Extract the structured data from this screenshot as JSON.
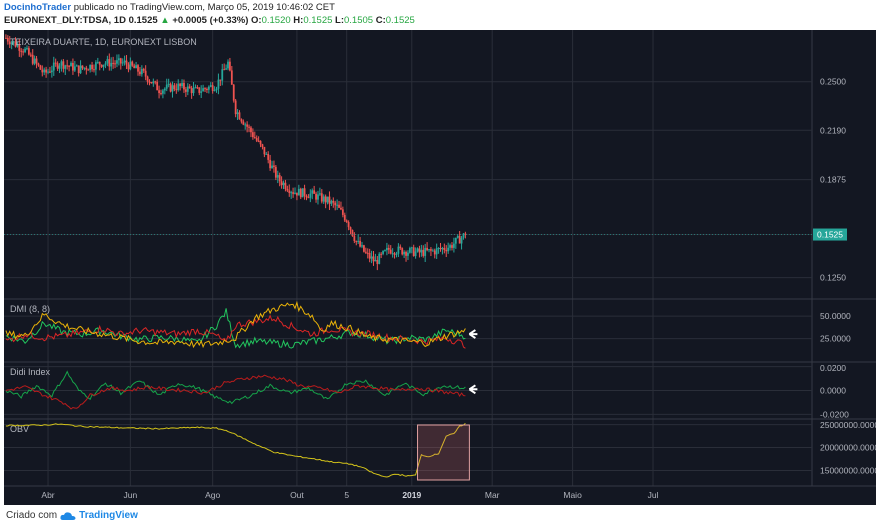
{
  "header": {
    "author": "DocinhoTrader",
    "published_text": "publicado no TradingView.com, Março 05, 2019 10:46:02 CET",
    "symbol": "EURONEXT_DLY:TDSA, 1D",
    "last": "0.1525",
    "change_arrow": "▲",
    "change": "+0.0005 (+0.33%)",
    "o_label": "O:",
    "o_val": "0.1520",
    "h_label": "H:",
    "h_val": "0.1525",
    "l_label": "L:",
    "l_val": "0.1505",
    "c_label": "C:",
    "c_val": "0.1525"
  },
  "footer": {
    "created_with": "Criado com",
    "brand": "TradingView"
  },
  "colors": {
    "background": "#131722",
    "grid": "#2a2e39",
    "up": "#26a69a",
    "down": "#ef5350",
    "dmi_plus": "#22c55e",
    "dmi_minus": "#dc2626",
    "adx": "#eab308",
    "didi_green": "#16a34a",
    "didi_red": "#b91c1c",
    "obv": "#d4c41a",
    "last_price_label": "#26a69a",
    "highlight": "#e57373"
  },
  "chart_data": [
    {
      "type": "candlestick",
      "title": "TEIXEIRA DUARTE, 1D, EURONEXT LISBON",
      "last_price_label": "0.1525",
      "y_ticks": [
        "0.2500",
        "0.2190",
        "0.1875",
        "0.1525",
        "0.1250"
      ],
      "y_tick_values": [
        0.25,
        0.219,
        0.1875,
        0.1525,
        0.125
      ],
      "ylim": [
        0.112,
        0.283
      ],
      "x_ticks": [
        "Abr",
        "Jun",
        "Ago",
        "Out",
        "5",
        "2019",
        "Mar",
        "Maio",
        "Jul"
      ],
      "price_path_anchors": [
        {
          "t": 0,
          "v": 0.278
        },
        {
          "t": 10,
          "v": 0.27
        },
        {
          "t": 20,
          "v": 0.255
        },
        {
          "t": 28,
          "v": 0.262
        },
        {
          "t": 38,
          "v": 0.258
        },
        {
          "t": 50,
          "v": 0.262
        },
        {
          "t": 62,
          "v": 0.262
        },
        {
          "t": 72,
          "v": 0.255
        },
        {
          "t": 80,
          "v": 0.245
        },
        {
          "t": 90,
          "v": 0.247
        },
        {
          "t": 100,
          "v": 0.244
        },
        {
          "t": 110,
          "v": 0.248
        },
        {
          "t": 116,
          "v": 0.262
        },
        {
          "t": 120,
          "v": 0.232
        },
        {
          "t": 128,
          "v": 0.218
        },
        {
          "t": 135,
          "v": 0.205
        },
        {
          "t": 142,
          "v": 0.188
        },
        {
          "t": 150,
          "v": 0.18
        },
        {
          "t": 160,
          "v": 0.178
        },
        {
          "t": 168,
          "v": 0.174
        },
        {
          "t": 173,
          "v": 0.17
        },
        {
          "t": 178,
          "v": 0.162
        },
        {
          "t": 183,
          "v": 0.148
        },
        {
          "t": 188,
          "v": 0.14
        },
        {
          "t": 193,
          "v": 0.135
        },
        {
          "t": 200,
          "v": 0.143
        },
        {
          "t": 208,
          "v": 0.142
        },
        {
          "t": 216,
          "v": 0.141
        },
        {
          "t": 224,
          "v": 0.142
        },
        {
          "t": 232,
          "v": 0.145
        },
        {
          "t": 240,
          "v": 0.1525
        }
      ]
    },
    {
      "type": "line",
      "title": "DMI (8, 8)",
      "y_ticks": [
        "50.0000",
        "25.0000"
      ],
      "y_tick_values": [
        50,
        25
      ],
      "ylim": [
        0,
        68
      ],
      "series": [
        {
          "key": "plus_di",
          "color": "#22c55e",
          "anchors": [
            [
              0,
              28
            ],
            [
              10,
              22
            ],
            [
              20,
              42
            ],
            [
              30,
              32
            ],
            [
              40,
              30
            ],
            [
              50,
              34
            ],
            [
              60,
              28
            ],
            [
              70,
              24
            ],
            [
              80,
              26
            ],
            [
              90,
              25
            ],
            [
              100,
              20
            ],
            [
              110,
              40
            ],
            [
              115,
              55
            ],
            [
              120,
              18
            ],
            [
              130,
              22
            ],
            [
              140,
              20
            ],
            [
              150,
              18
            ],
            [
              160,
              22
            ],
            [
              170,
              26
            ],
            [
              180,
              32
            ],
            [
              190,
              28
            ],
            [
              200,
              22
            ],
            [
              210,
              26
            ],
            [
              220,
              24
            ],
            [
              230,
              34
            ],
            [
              240,
              28
            ]
          ]
        },
        {
          "key": "minus_di",
          "color": "#dc2626",
          "anchors": [
            [
              0,
              22
            ],
            [
              10,
              30
            ],
            [
              20,
              26
            ],
            [
              30,
              28
            ],
            [
              40,
              32
            ],
            [
              50,
              36
            ],
            [
              60,
              30
            ],
            [
              70,
              34
            ],
            [
              80,
              32
            ],
            [
              90,
              30
            ],
            [
              100,
              34
            ],
            [
              110,
              28
            ],
            [
              115,
              20
            ],
            [
              120,
              40
            ],
            [
              130,
              44
            ],
            [
              140,
              48
            ],
            [
              150,
              38
            ],
            [
              160,
              30
            ],
            [
              170,
              36
            ],
            [
              180,
              32
            ],
            [
              190,
              30
            ],
            [
              200,
              26
            ],
            [
              210,
              24
            ],
            [
              220,
              22
            ],
            [
              230,
              26
            ],
            [
              240,
              18
            ]
          ]
        },
        {
          "key": "adx",
          "color": "#eab308",
          "anchors": [
            [
              0,
              30
            ],
            [
              10,
              28
            ],
            [
              20,
              52
            ],
            [
              30,
              40
            ],
            [
              40,
              34
            ],
            [
              50,
              30
            ],
            [
              60,
              26
            ],
            [
              70,
              22
            ],
            [
              80,
              20
            ],
            [
              90,
              22
            ],
            [
              100,
              18
            ],
            [
              110,
              20
            ],
            [
              120,
              26
            ],
            [
              130,
              48
            ],
            [
              140,
              58
            ],
            [
              150,
              64
            ],
            [
              160,
              50
            ],
            [
              165,
              34
            ],
            [
              170,
              42
            ],
            [
              180,
              36
            ],
            [
              190,
              26
            ],
            [
              200,
              24
            ],
            [
              210,
              22
            ],
            [
              220,
              20
            ],
            [
              230,
              28
            ],
            [
              240,
              34
            ]
          ]
        }
      ]
    },
    {
      "type": "line",
      "title": "Didi Index",
      "y_ticks": [
        "0.0200",
        "0.0000",
        "-0.0200"
      ],
      "y_tick_values": [
        0.02,
        0,
        -0.02
      ],
      "ylim": [
        -0.023,
        0.023
      ],
      "series": [
        {
          "key": "didi_green",
          "color": "#16a34a",
          "anchors": [
            [
              0,
              0.0
            ],
            [
              8,
              -0.005
            ],
            [
              16,
              0.004
            ],
            [
              24,
              -0.004
            ],
            [
              32,
              0.015
            ],
            [
              38,
              0.0
            ],
            [
              44,
              -0.006
            ],
            [
              52,
              0.006
            ],
            [
              60,
              -0.002
            ],
            [
              70,
              0.008
            ],
            [
              80,
              -0.004
            ],
            [
              90,
              0.006
            ],
            [
              100,
              0.002
            ],
            [
              110,
              -0.006
            ],
            [
              118,
              -0.01
            ],
            [
              128,
              -0.004
            ],
            [
              138,
              0.004
            ],
            [
              148,
              -0.002
            ],
            [
              158,
              0.002
            ],
            [
              168,
              -0.008
            ],
            [
              178,
              0.006
            ],
            [
              188,
              0.008
            ],
            [
              198,
              -0.004
            ],
            [
              208,
              0.006
            ],
            [
              218,
              -0.003
            ],
            [
              228,
              0.004
            ],
            [
              240,
              0.002
            ]
          ]
        },
        {
          "key": "didi_red",
          "color": "#b91c1c",
          "anchors": [
            [
              0,
              0.0
            ],
            [
              10,
              0.003
            ],
            [
              20,
              -0.004
            ],
            [
              30,
              -0.01
            ],
            [
              36,
              -0.016
            ],
            [
              44,
              -0.004
            ],
            [
              54,
              0.002
            ],
            [
              64,
              0.0
            ],
            [
              74,
              0.003
            ],
            [
              84,
              0.001
            ],
            [
              94,
              0.0
            ],
            [
              104,
              -0.002
            ],
            [
              114,
              0.006
            ],
            [
              124,
              0.01
            ],
            [
              134,
              0.012
            ],
            [
              144,
              0.01
            ],
            [
              154,
              0.004
            ],
            [
              164,
              0.002
            ],
            [
              174,
              -0.002
            ],
            [
              184,
              0.004
            ],
            [
              194,
              0.002
            ],
            [
              204,
              0.0
            ],
            [
              214,
              0.002
            ],
            [
              224,
              0.0
            ],
            [
              240,
              -0.004
            ]
          ]
        }
      ]
    },
    {
      "type": "line",
      "title": "OBV",
      "y_ticks": [
        "25000000.0000",
        "20000000.0000",
        "15000000.0000"
      ],
      "y_tick_values": [
        25000000,
        20000000,
        15000000
      ],
      "ylim": [
        12500000,
        26000000
      ],
      "series": [
        {
          "key": "obv",
          "color": "#d4c41a",
          "anchors": [
            [
              0,
              24800000
            ],
            [
              20,
              24900000
            ],
            [
              28,
              25100000
            ],
            [
              40,
              24600000
            ],
            [
              60,
              24300000
            ],
            [
              80,
              24100000
            ],
            [
              100,
              24400000
            ],
            [
              110,
              24200000
            ],
            [
              116,
              23600000
            ],
            [
              124,
              22000000
            ],
            [
              132,
              20400000
            ],
            [
              140,
              19000000
            ],
            [
              150,
              18200000
            ],
            [
              160,
              17600000
            ],
            [
              170,
              16900000
            ],
            [
              180,
              16400000
            ],
            [
              186,
              15700000
            ],
            [
              192,
              14400000
            ],
            [
              198,
              13600000
            ],
            [
              204,
              14200000
            ],
            [
              210,
              13800000
            ],
            [
              214,
              14000000
            ],
            [
              217,
              18500000
            ],
            [
              220,
              18000000
            ],
            [
              226,
              18700000
            ],
            [
              230,
              22500000
            ],
            [
              234,
              23000000
            ],
            [
              237,
              24600000
            ],
            [
              240,
              25200000
            ]
          ]
        }
      ],
      "highlight_range": {
        "t_start": 215,
        "t_end": 240
      }
    }
  ]
}
